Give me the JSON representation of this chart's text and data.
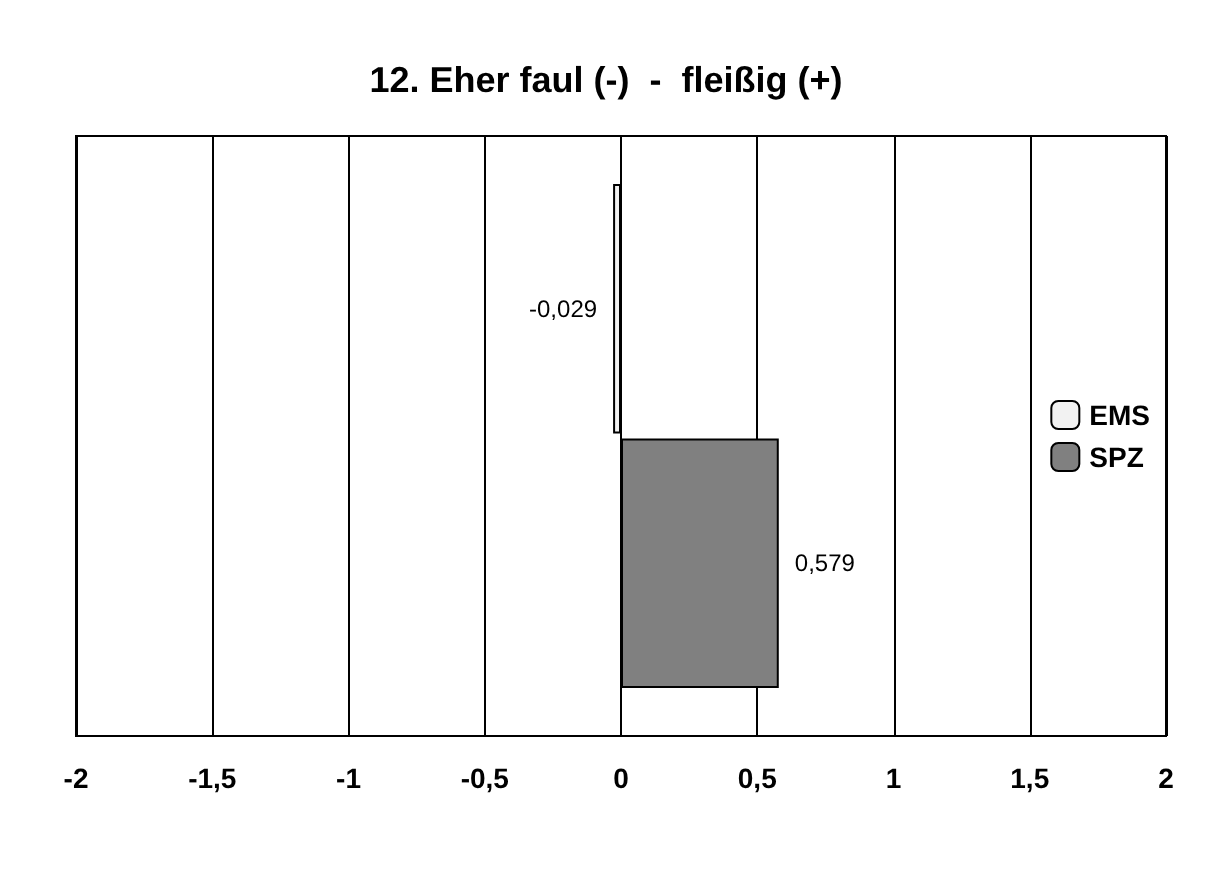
{
  "chart_data": {
    "type": "bar",
    "title": "12. Eher faul (-)  -  fleißig (+)",
    "orientation": "horizontal",
    "categories": [
      null
    ],
    "series": [
      {
        "name": "EMS",
        "color": "#f2f2f2",
        "values": [
          -0.029
        ],
        "value_labels": [
          "-0,029"
        ]
      },
      {
        "name": "SPZ",
        "color": "#808080",
        "values": [
          0.579
        ],
        "value_labels": [
          "0,579"
        ]
      }
    ],
    "xlim": [
      -2,
      2
    ],
    "xticks": [
      {
        "value": -2,
        "label": "-2"
      },
      {
        "value": -1.5,
        "label": "-1,5"
      },
      {
        "value": -1,
        "label": "-1"
      },
      {
        "value": -0.5,
        "label": "-0,5"
      },
      {
        "value": 0,
        "label": "0"
      },
      {
        "value": 0.5,
        "label": "0,5"
      },
      {
        "value": 1,
        "label": "1"
      },
      {
        "value": 1.5,
        "label": "1,5"
      },
      {
        "value": 2,
        "label": "2"
      }
    ],
    "grid": "x",
    "legend": "right"
  }
}
